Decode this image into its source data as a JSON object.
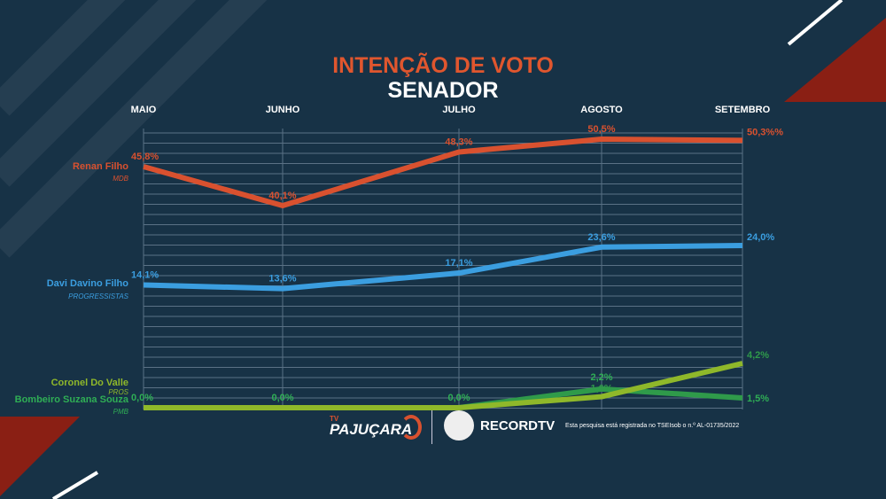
{
  "colors": {
    "bg": "#173246",
    "renan": "#d9512f",
    "davi": "#3b9ee0",
    "coronel": "#8fb82a",
    "bombeiro": "#2f9a4a"
  },
  "title": "INTENÇÃO DE VOTO",
  "subtitle": "SENADOR",
  "footer": {
    "brand1_small": "TV",
    "brand1": "PAJUÇARA",
    "brand2": "RECORDTV",
    "note": "Esta pesquisa está registrada no TSEIsob o n.º AL-01735/2022"
  },
  "chart_data": {
    "type": "line",
    "title": "INTENÇÃO DE VOTO – SENADOR",
    "categories": [
      "MAIO",
      "JUNHO",
      "JULHO",
      "AGOSTO",
      "SETEMBRO"
    ],
    "series": [
      {
        "name": "Renan Filho",
        "party": "MDB",
        "values": [
          45.8,
          40.1,
          48.3,
          50.5,
          50.3
        ],
        "labels": [
          "45,8%",
          "40,1%",
          "48,3%",
          "50,5%",
          "50,3%%"
        ]
      },
      {
        "name": "Davi Davino Filho",
        "party": "PROGRESSISTAS",
        "values": [
          14.1,
          13.6,
          17.1,
          23.6,
          24.0
        ],
        "labels": [
          "14,1%",
          "13,6%",
          "17,1%",
          "23,6%",
          "24,0%"
        ]
      },
      {
        "name": "Coronel Do Valle",
        "party": "PROS",
        "values": [
          0,
          0,
          0,
          1.6,
          4.2
        ],
        "labels": [
          "",
          "",
          "",
          "1,6%",
          "4,2%"
        ]
      },
      {
        "name": "Bombeiro Suzana Souza",
        "party": "PMB",
        "values": [
          0,
          0,
          0,
          2.2,
          1.5
        ],
        "labels": [
          "0,0%",
          "0,0%",
          "0,0%",
          "2,2%",
          "1,5%"
        ]
      }
    ],
    "grid": true
  }
}
